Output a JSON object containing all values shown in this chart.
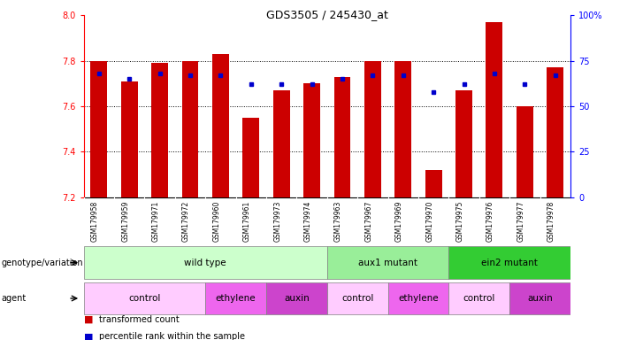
{
  "title": "GDS3505 / 245430_at",
  "samples": [
    "GSM179958",
    "GSM179959",
    "GSM179971",
    "GSM179972",
    "GSM179960",
    "GSM179961",
    "GSM179973",
    "GSM179974",
    "GSM179963",
    "GSM179967",
    "GSM179969",
    "GSM179970",
    "GSM179975",
    "GSM179976",
    "GSM179977",
    "GSM179978"
  ],
  "bar_values": [
    7.8,
    7.71,
    7.79,
    7.8,
    7.83,
    7.55,
    7.67,
    7.7,
    7.73,
    7.8,
    7.8,
    7.32,
    7.67,
    7.97,
    7.6,
    7.77
  ],
  "dot_values": [
    68,
    65,
    68,
    67,
    67,
    62,
    62,
    62,
    65,
    67,
    67,
    58,
    62,
    68,
    62,
    67
  ],
  "ymin": 7.2,
  "ymax": 8.0,
  "y2min": 0,
  "y2max": 100,
  "yticks": [
    7.2,
    7.4,
    7.6,
    7.8,
    8.0
  ],
  "y2ticks": [
    0,
    25,
    50,
    75,
    100
  ],
  "y2ticklabels": [
    "0",
    "25",
    "50",
    "75",
    "100%"
  ],
  "bar_color": "#cc0000",
  "dot_color": "#0000cc",
  "genotype_groups": [
    {
      "label": "wild type",
      "start": 0,
      "end": 8,
      "color": "#ccffcc"
    },
    {
      "label": "aux1 mutant",
      "start": 8,
      "end": 12,
      "color": "#99ee99"
    },
    {
      "label": "ein2 mutant",
      "start": 12,
      "end": 16,
      "color": "#33cc33"
    }
  ],
  "agent_groups": [
    {
      "label": "control",
      "start": 0,
      "end": 4,
      "color": "#ffccff"
    },
    {
      "label": "ethylene",
      "start": 4,
      "end": 6,
      "color": "#ee66ee"
    },
    {
      "label": "auxin",
      "start": 6,
      "end": 8,
      "color": "#cc44cc"
    },
    {
      "label": "control",
      "start": 8,
      "end": 10,
      "color": "#ffccff"
    },
    {
      "label": "ethylene",
      "start": 10,
      "end": 12,
      "color": "#ee66ee"
    },
    {
      "label": "control",
      "start": 12,
      "end": 14,
      "color": "#ffccff"
    },
    {
      "label": "auxin",
      "start": 14,
      "end": 16,
      "color": "#cc44cc"
    }
  ],
  "legend_items": [
    {
      "label": "transformed count",
      "color": "#cc0000"
    },
    {
      "label": "percentile rank within the sample",
      "color": "#0000cc"
    }
  ],
  "xtick_bg": "#cccccc",
  "grid_dotted_vals": [
    7.4,
    7.6,
    7.8
  ]
}
